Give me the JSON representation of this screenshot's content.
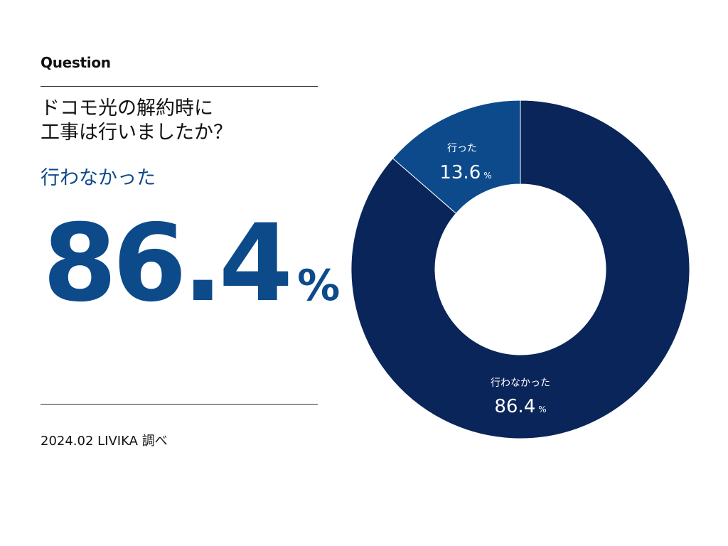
{
  "question_label": "Question",
  "question_lines": [
    "ドコモ光の解約時に",
    "工事は行いましたか？"
  ],
  "highlight": {
    "label": "行わなかった",
    "value": "86.4",
    "unit": "%"
  },
  "source": "2024.02 LIVIKA 調べ",
  "colors": {
    "accent": "#0c4a8a",
    "slice_major": "#0a2559",
    "slice_minor": "#0d4a8c"
  },
  "chart_data": {
    "type": "pie",
    "donut": true,
    "categories": [
      "行わなかった",
      "行った"
    ],
    "values": [
      86.4,
      13.6
    ],
    "unit": "%",
    "labels": [
      {
        "category": "行わなかった",
        "value_text": "86.4",
        "unit": "%"
      },
      {
        "category": "行った",
        "value_text": "13.6",
        "unit": "%"
      }
    ]
  }
}
